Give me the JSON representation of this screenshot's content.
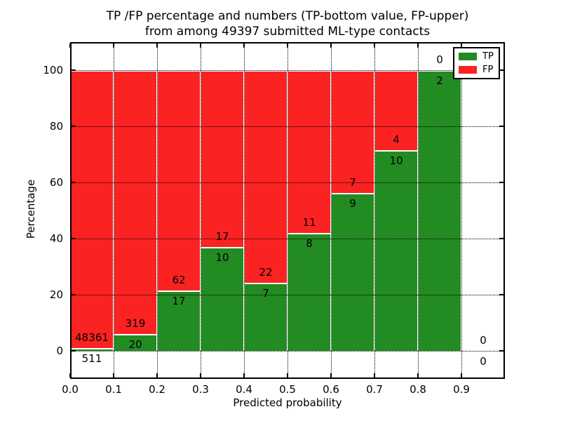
{
  "chart_data": {
    "type": "bar",
    "stacked": true,
    "grid": true,
    "title": "TP /FP percentage and numbers (TP-bottom value, FP-upper)\nfrom among 49397 submitted ML-type contacts",
    "xlabel": "Predicted probability",
    "ylabel": "Percentage",
    "total_contacts": 49397,
    "xlim": [
      0.0,
      1.0
    ],
    "ylim": [
      -10,
      110
    ],
    "x_ticks": [
      "0.0",
      "0.1",
      "0.2",
      "0.3",
      "0.4",
      "0.5",
      "0.6",
      "0.7",
      "0.8",
      "0.9"
    ],
    "y_ticks": [
      "0",
      "20",
      "40",
      "60",
      "80",
      "100"
    ],
    "bin_width": 0.1,
    "bins": [
      {
        "x_start": 0.0,
        "tp": 511,
        "fp": 48361,
        "tp_pct": 1.05,
        "fp_pct": 98.95
      },
      {
        "x_start": 0.1,
        "tp": 20,
        "fp": 319,
        "tp_pct": 5.9,
        "fp_pct": 94.1
      },
      {
        "x_start": 0.2,
        "tp": 17,
        "fp": 62,
        "tp_pct": 21.52,
        "fp_pct": 78.48
      },
      {
        "x_start": 0.3,
        "tp": 10,
        "fp": 17,
        "tp_pct": 37.04,
        "fp_pct": 62.96
      },
      {
        "x_start": 0.4,
        "tp": 7,
        "fp": 22,
        "tp_pct": 24.14,
        "fp_pct": 75.86
      },
      {
        "x_start": 0.5,
        "tp": 8,
        "fp": 11,
        "tp_pct": 42.11,
        "fp_pct": 57.89
      },
      {
        "x_start": 0.6,
        "tp": 9,
        "fp": 7,
        "tp_pct": 56.25,
        "fp_pct": 43.75
      },
      {
        "x_start": 0.7,
        "tp": 10,
        "fp": 4,
        "tp_pct": 71.43,
        "fp_pct": 28.57
      },
      {
        "x_start": 0.8,
        "tp": 2,
        "fp": 0,
        "tp_pct": 100,
        "fp_pct": 0
      },
      {
        "x_start": 0.9,
        "tp": 0,
        "fp": 0,
        "tp_pct": 0,
        "fp_pct": 0
      }
    ],
    "legend": {
      "position": "upper-right",
      "items": [
        {
          "label": "TP",
          "color": "#228B22"
        },
        {
          "label": "FP",
          "color": "#FB2222"
        }
      ]
    },
    "colors": {
      "tp": "#228B22",
      "fp": "#FB2222",
      "grid": "#000000",
      "bar_edge": "#FFFFFF",
      "axis": "#000000"
    }
  }
}
